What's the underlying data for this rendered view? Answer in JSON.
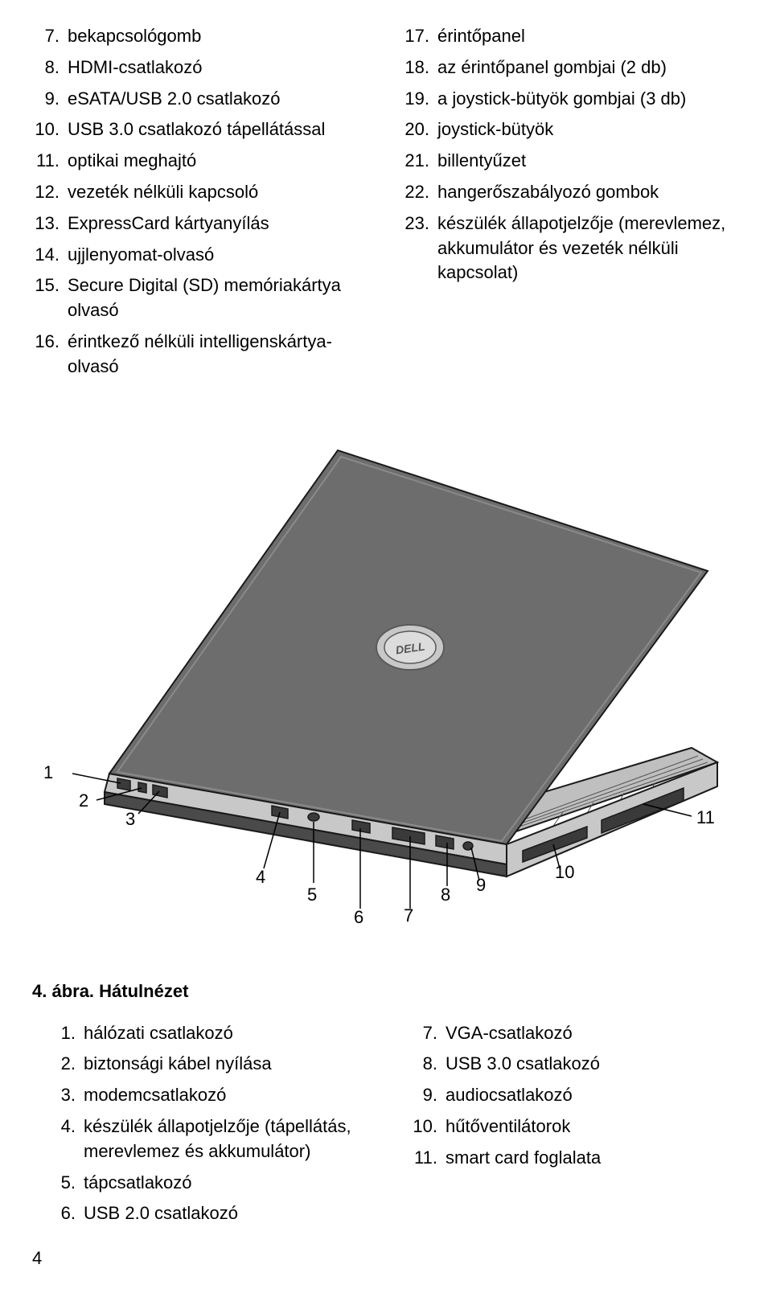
{
  "topLeft": [
    {
      "n": "7.",
      "t": "bekapcsológomb"
    },
    {
      "n": "8.",
      "t": "HDMI-csatlakozó"
    },
    {
      "n": "9.",
      "t": "eSATA/USB 2.0 csatlakozó"
    },
    {
      "n": "10.",
      "t": "USB 3.0 csatlakozó tápellátással"
    },
    {
      "n": "11.",
      "t": "optikai meghajtó"
    },
    {
      "n": "12.",
      "t": "vezeték nélküli kapcsoló"
    },
    {
      "n": "13.",
      "t": "ExpressCard kártyanyílás"
    },
    {
      "n": "14.",
      "t": "ujjlenyomat-olvasó"
    },
    {
      "n": "15.",
      "t": "Secure Digital (SD) memóriakártya olvasó"
    },
    {
      "n": "16.",
      "t": "érintkező nélküli intelligenskártya-olvasó"
    }
  ],
  "topRight": [
    {
      "n": "17.",
      "t": "érintőpanel"
    },
    {
      "n": "18.",
      "t": "az érintőpanel gombjai (2 db)"
    },
    {
      "n": "19.",
      "t": "a joystick-bütyök gombjai (3 db)"
    },
    {
      "n": "20.",
      "t": "joystick-bütyök"
    },
    {
      "n": "21.",
      "t": "billentyűzet"
    },
    {
      "n": "22.",
      "t": "hangerőszabályozó gombok"
    },
    {
      "n": "23.",
      "t": "készülék állapotjelzője (merevlemez, akkumulátor és vezeték nélküli kapcsolat)"
    }
  ],
  "figureCaption": "4. ábra. Hátulnézet",
  "bottomLeft": [
    {
      "n": "1.",
      "t": "hálózati csatlakozó"
    },
    {
      "n": "2.",
      "t": "biztonsági kábel nyílása"
    },
    {
      "n": "3.",
      "t": "modemcsatlakozó"
    },
    {
      "n": "4.",
      "t": "készülék állapotjelzője (tápellátás, merevlemez és akkumulátor)"
    },
    {
      "n": "5.",
      "t": "tápcsatlakozó"
    },
    {
      "n": "6.",
      "t": "USB 2.0 csatlakozó"
    }
  ],
  "bottomRight": [
    {
      "n": "7.",
      "t": "VGA-csatlakozó"
    },
    {
      "n": "8.",
      "t": "USB 3.0 csatlakozó"
    },
    {
      "n": "9.",
      "t": "audiocsatlakozó"
    },
    {
      "n": "10.",
      "t": "hűtőventilátorok"
    },
    {
      "n": "11.",
      "t": "smart card foglalata"
    }
  ],
  "callouts": {
    "c1": "1",
    "c2": "2",
    "c3": "3",
    "c4": "4",
    "c5": "5",
    "c6": "6",
    "c7": "7",
    "c8": "8",
    "c9": "9",
    "c10": "10",
    "c11": "11"
  },
  "pageNumber": "4",
  "diagram": {
    "lidFill": "#6d6d6d",
    "lidStroke": "#1a1a1a",
    "edgeFill": "#c8c8c8",
    "edgeStroke": "#1a1a1a",
    "baseFill": "#bfbfbf",
    "logoRing": "#c8c8c8",
    "logoStroke": "#5a5a5a",
    "logoInner": "#dcdcdc",
    "calloutLine": "#000000"
  }
}
